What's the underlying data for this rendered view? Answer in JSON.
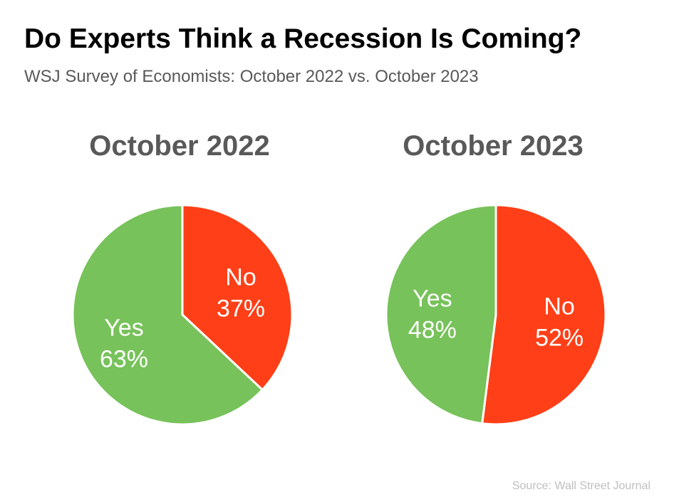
{
  "header": {
    "title": "Do Experts Think a Recession Is Coming?",
    "subtitle": "WSJ Survey of Economists: October 2022 vs. October 2023"
  },
  "footer": {
    "source": "Source: Wall Street Journal"
  },
  "colors": {
    "yes": "#77c25a",
    "no": "#ff3f17",
    "chart_title": "#595959",
    "slice_label": "#ffffff"
  },
  "chart_data": [
    {
      "type": "pie",
      "title": "October 2022",
      "slices": [
        {
          "label": "No",
          "value": 37,
          "display": "37%",
          "color": "#ff3f17"
        },
        {
          "label": "Yes",
          "value": 63,
          "display": "63%",
          "color": "#77c25a"
        }
      ]
    },
    {
      "type": "pie",
      "title": "October 2023",
      "slices": [
        {
          "label": "No",
          "value": 52,
          "display": "52%",
          "color": "#ff3f17"
        },
        {
          "label": "Yes",
          "value": 48,
          "display": "48%",
          "color": "#77c25a"
        }
      ]
    }
  ]
}
